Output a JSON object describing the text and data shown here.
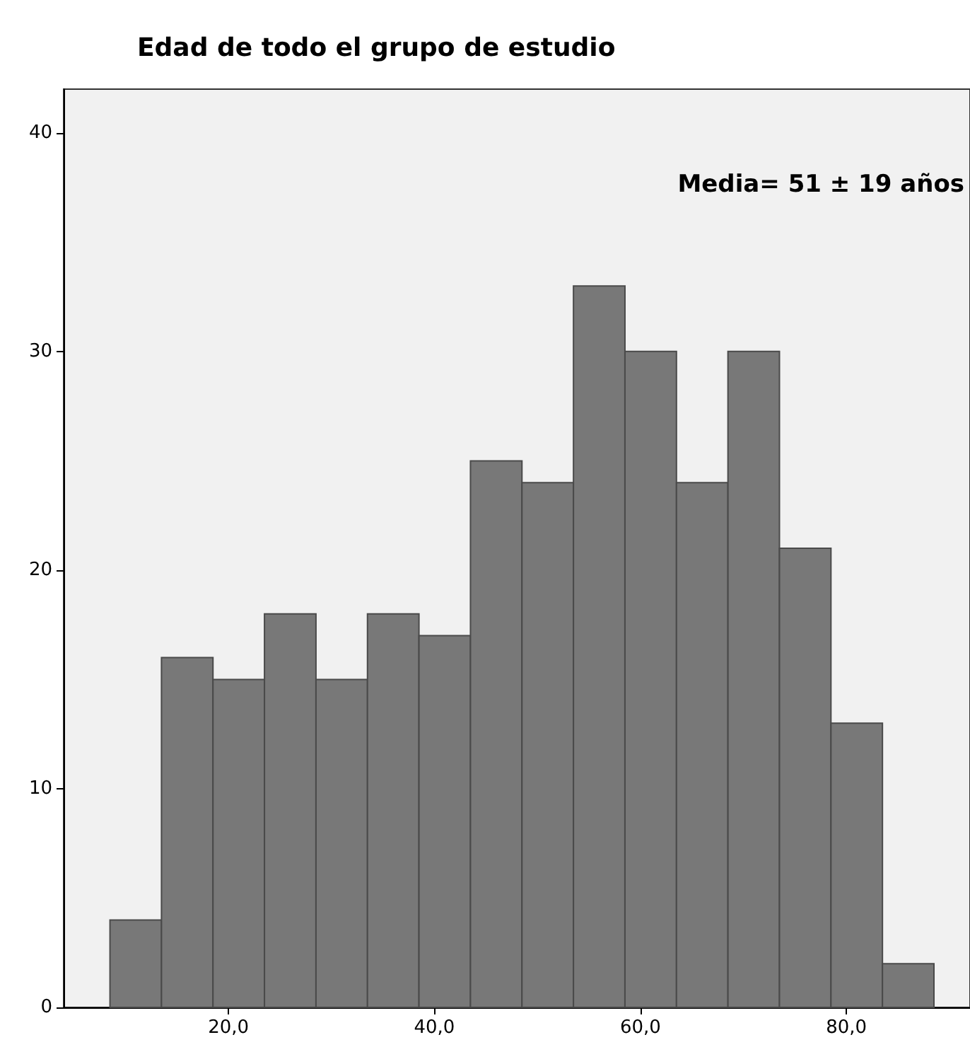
{
  "chart_data": {
    "type": "histogram",
    "title": "Edad de todo el grupo de estudio",
    "bins": [
      8.5,
      13.5,
      18.5,
      23.5,
      28.5,
      33.5,
      38.5,
      43.5,
      48.5,
      53.5,
      58.5,
      63.5,
      68.5,
      73.5,
      78.5,
      83.5,
      88.5
    ],
    "values": [
      4,
      16,
      15,
      18,
      15,
      18,
      17,
      25,
      24,
      33,
      30,
      24,
      30,
      21,
      13,
      2
    ],
    "color": "#787878",
    "xlim": [
      4,
      92
    ],
    "xticks": [
      {
        "value": 20,
        "label": "20,0"
      },
      {
        "value": 40,
        "label": "40,0"
      },
      {
        "value": 60,
        "label": "60,0"
      },
      {
        "value": 80,
        "label": "80,0"
      }
    ],
    "ylim": [
      0,
      42
    ],
    "yticks": [
      0,
      10,
      20,
      30,
      40
    ],
    "annotations": [
      "Media= 51 ± 19 años"
    ],
    "grid": false
  }
}
